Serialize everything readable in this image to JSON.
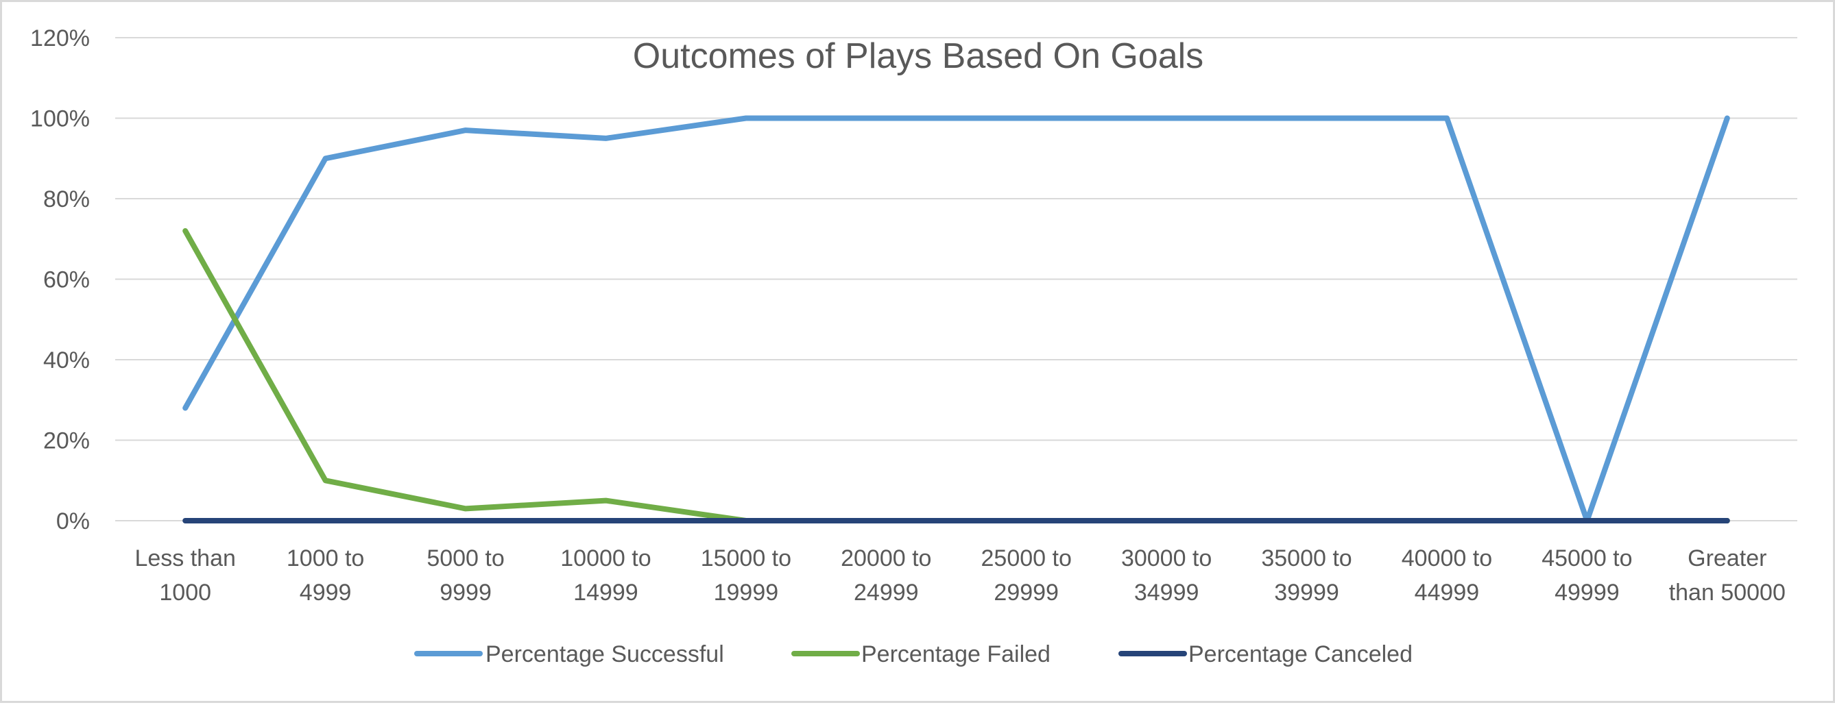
{
  "chart_data": {
    "type": "line",
    "title": "Outcomes of Plays Based On Goals",
    "xlabel": "",
    "ylabel": "",
    "categories": [
      [
        "Less than",
        "1000"
      ],
      [
        "1000 to",
        "4999"
      ],
      [
        "5000 to",
        "9999"
      ],
      [
        "10000 to",
        "14999"
      ],
      [
        "15000 to",
        "19999"
      ],
      [
        "20000 to",
        "24999"
      ],
      [
        "25000 to",
        "29999"
      ],
      [
        "30000 to",
        "34999"
      ],
      [
        "35000 to",
        "39999"
      ],
      [
        "40000 to",
        "44999"
      ],
      [
        "45000 to",
        "49999"
      ],
      [
        "Greater",
        "than 50000"
      ]
    ],
    "ylim": [
      0,
      120
    ],
    "yticks": [
      "0%",
      "20%",
      "40%",
      "60%",
      "80%",
      "100%",
      "120%"
    ],
    "grid": true,
    "legend_position": "bottom",
    "series": [
      {
        "name": "Percentage Successful",
        "color": "#5b9bd5",
        "values": [
          28,
          90,
          97,
          95,
          100,
          100,
          100,
          100,
          100,
          100,
          0,
          100
        ]
      },
      {
        "name": "Percentage Failed",
        "color": "#70ad47",
        "values": [
          72,
          10,
          3,
          5,
          0,
          0,
          0,
          0,
          0,
          0,
          0,
          0
        ]
      },
      {
        "name": "Percentage Canceled",
        "color": "#264478",
        "values": [
          0,
          0,
          0,
          0,
          0,
          0,
          0,
          0,
          0,
          0,
          0,
          0
        ]
      }
    ]
  }
}
